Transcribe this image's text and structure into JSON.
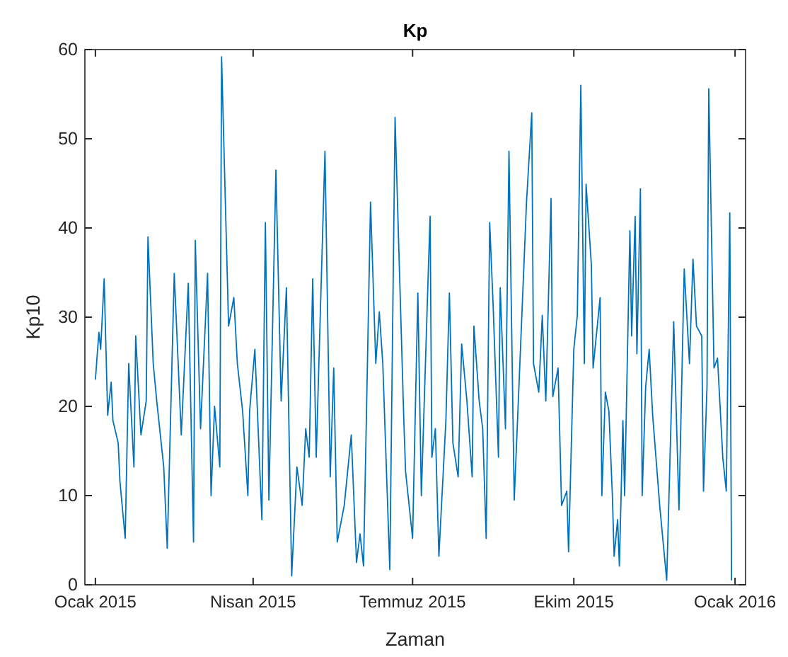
{
  "chart_data": {
    "type": "line",
    "title": "Kp",
    "xlabel": "Zaman",
    "ylabel": "Kp10",
    "xlim": [
      "2014-12-26",
      "2016-01-07"
    ],
    "xticks": [
      {
        "value": "2015-01-01",
        "label": "Ocak 2015"
      },
      {
        "value": "2015-04-01",
        "label": "Nisan 2015"
      },
      {
        "value": "2015-07-01",
        "label": "Temmuz 2015"
      },
      {
        "value": "2015-10-01",
        "label": "Ekim 2015"
      },
      {
        "value": "2016-01-01",
        "label": "Ocak 2016"
      }
    ],
    "ylim": [
      0,
      60
    ],
    "yticks": [
      0,
      10,
      20,
      30,
      40,
      50,
      60
    ],
    "grid": false,
    "marker": "none",
    "line_style": "solid",
    "x": [
      "2015-01-01",
      "2015-01-03",
      "2015-01-04",
      "2015-01-06",
      "2015-01-08",
      "2015-01-10",
      "2015-01-11",
      "2015-01-14",
      "2015-01-15",
      "2015-01-18",
      "2015-01-20",
      "2015-01-23",
      "2015-01-24",
      "2015-01-27",
      "2015-01-30",
      "2015-01-31",
      "2015-02-03",
      "2015-02-05",
      "2015-02-09",
      "2015-02-11",
      "2015-02-15",
      "2015-02-19",
      "2015-02-23",
      "2015-02-26",
      "2015-02-27",
      "2015-03-02",
      "2015-03-06",
      "2015-03-08",
      "2015-03-10",
      "2015-03-13",
      "2015-03-14",
      "2015-03-18",
      "2015-03-21",
      "2015-03-23",
      "2015-03-26",
      "2015-03-29",
      "2015-03-30",
      "2015-04-02",
      "2015-04-06",
      "2015-04-08",
      "2015-04-10",
      "2015-04-14",
      "2015-04-17",
      "2015-04-20",
      "2015-04-23",
      "2015-04-26",
      "2015-04-29",
      "2015-05-01",
      "2015-05-03",
      "2015-05-05",
      "2015-05-07",
      "2015-05-12",
      "2015-05-15",
      "2015-05-17",
      "2015-05-19",
      "2015-05-23",
      "2015-05-27",
      "2015-05-30",
      "2015-06-01",
      "2015-06-03",
      "2015-06-07",
      "2015-06-10",
      "2015-06-12",
      "2015-06-14",
      "2015-06-18",
      "2015-06-21",
      "2015-06-23",
      "2015-06-26",
      "2015-06-27",
      "2015-07-01",
      "2015-07-04",
      "2015-07-06",
      "2015-07-10",
      "2015-07-11",
      "2015-07-12",
      "2015-07-14",
      "2015-07-16",
      "2015-07-20",
      "2015-07-22",
      "2015-07-24",
      "2015-07-27",
      "2015-07-29",
      "2015-08-01",
      "2015-08-04",
      "2015-08-05",
      "2015-08-08",
      "2015-08-10",
      "2015-08-12",
      "2015-08-14",
      "2015-08-16",
      "2015-08-19",
      "2015-08-20",
      "2015-08-23",
      "2015-08-25",
      "2015-08-28",
      "2015-09-02",
      "2015-09-04",
      "2015-09-07",
      "2015-09-08",
      "2015-09-11",
      "2015-09-13",
      "2015-09-15",
      "2015-09-18",
      "2015-09-19",
      "2015-09-22",
      "2015-09-24",
      "2015-09-27",
      "2015-09-28",
      "2015-10-01",
      "2015-10-03",
      "2015-10-05",
      "2015-10-07",
      "2015-10-08",
      "2015-10-11",
      "2015-10-12",
      "2015-10-16",
      "2015-10-17",
      "2015-10-19",
      "2015-10-21",
      "2015-10-23",
      "2015-10-24",
      "2015-10-26",
      "2015-10-27",
      "2015-10-29",
      "2015-10-30",
      "2015-11-02",
      "2015-11-03",
      "2015-11-05",
      "2015-11-06",
      "2015-11-08",
      "2015-11-09",
      "2015-11-11",
      "2015-11-13",
      "2015-11-15",
      "2015-11-19",
      "2015-11-23",
      "2015-11-27",
      "2015-11-30",
      "2015-12-03",
      "2015-12-06",
      "2015-12-08",
      "2015-12-10",
      "2015-12-13",
      "2015-12-14",
      "2015-12-16",
      "2015-12-17",
      "2015-12-20",
      "2015-12-22",
      "2015-12-25",
      "2015-12-27",
      "2015-12-29",
      "2015-12-30"
    ],
    "series": [
      {
        "color": "#0072bd",
        "values": [
          23.0,
          28.3,
          26.4,
          34.3,
          19.0,
          22.7,
          18.4,
          15.9,
          11.6,
          5.2,
          24.8,
          13.2,
          27.9,
          16.8,
          20.6,
          39.0,
          24.8,
          20.6,
          13.2,
          4.1,
          34.9,
          16.8,
          33.8,
          4.8,
          38.6,
          17.5,
          34.9,
          10.0,
          20.0,
          13.2,
          59.2,
          29.0,
          32.2,
          24.8,
          19.5,
          10.0,
          19.5,
          26.4,
          7.3,
          40.6,
          9.5,
          46.5,
          20.6,
          33.3,
          1.0,
          13.2,
          8.9,
          17.5,
          14.3,
          34.3,
          14.3,
          48.6,
          12.1,
          24.3,
          4.8,
          8.9,
          16.8,
          2.5,
          5.7,
          2.1,
          42.9,
          24.8,
          30.6,
          24.8,
          1.7,
          52.4,
          38.6,
          18.4,
          12.7,
          5.2,
          32.7,
          10.0,
          35.4,
          41.3,
          14.3,
          17.5,
          3.2,
          18.4,
          32.7,
          15.9,
          12.1,
          27.0,
          20.6,
          12.1,
          29.0,
          20.6,
          17.5,
          5.2,
          40.6,
          31.1,
          14.3,
          33.3,
          17.5,
          48.6,
          9.5,
          33.3,
          42.9,
          52.9,
          24.8,
          21.6,
          30.2,
          20.6,
          43.3,
          21.1,
          24.3,
          8.9,
          10.5,
          3.7,
          26.4,
          30.2,
          56.0,
          24.8,
          44.9,
          35.9,
          24.3,
          32.2,
          10.0,
          21.6,
          19.5,
          10.0,
          3.2,
          7.3,
          2.1,
          18.4,
          10.0,
          39.7,
          27.9,
          41.3,
          25.9,
          44.4,
          10.0,
          22.2,
          26.4,
          19.0,
          8.9,
          0.5,
          29.5,
          8.4,
          35.4,
          24.8,
          36.5,
          29.0,
          27.9,
          10.5,
          22.2,
          55.6,
          24.3,
          25.4,
          14.3,
          10.5,
          41.7,
          0.5
        ]
      }
    ]
  }
}
